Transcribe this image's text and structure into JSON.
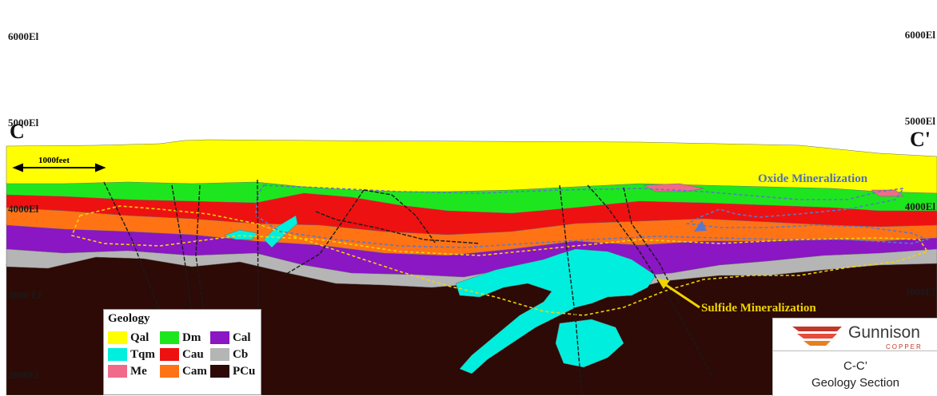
{
  "section_start": "C",
  "section_end": "C'",
  "elevations_left": [
    "6000El",
    "5000El",
    "4000El",
    "3000 El",
    "2000El"
  ],
  "elevations_right": [
    "6000El",
    "5000El",
    "4000El",
    "3000El"
  ],
  "scale_bar": "1000feet",
  "annotations": {
    "oxide": "Oxide Mineralization",
    "sulfide": "Sulfide Mineralization"
  },
  "colors": {
    "Qal": "#ffff00",
    "Dm": "#1ee61e",
    "Cal": "#8a16c4",
    "Tqm": "#00eedd",
    "Cau": "#ee1111",
    "Cb": "#b5b5b5",
    "Me": "#f06a8a",
    "Cam": "#ff7315",
    "PCu": "#2d0a05",
    "oxide_outline": "#5a78c8",
    "sulfide_outline": "#f0d400"
  },
  "legend": {
    "title": "Geology",
    "items": [
      {
        "code": "Qal",
        "color": "#ffff00"
      },
      {
        "code": "Dm",
        "color": "#1ee61e"
      },
      {
        "code": "Cal",
        "color": "#8a16c4"
      },
      {
        "code": "Tqm",
        "color": "#00eedd"
      },
      {
        "code": "Cau",
        "color": "#ee1111"
      },
      {
        "code": "Cb",
        "color": "#b5b5b5"
      },
      {
        "code": "Me",
        "color": "#f06a8a"
      },
      {
        "code": "Cam",
        "color": "#ff7315"
      },
      {
        "code": "PCu",
        "color": "#2d0a05"
      }
    ]
  },
  "title_block": {
    "logo_name": "Gunnison",
    "logo_sub": "COPPER",
    "line1": "C-C’",
    "line2": "Geology Section"
  }
}
